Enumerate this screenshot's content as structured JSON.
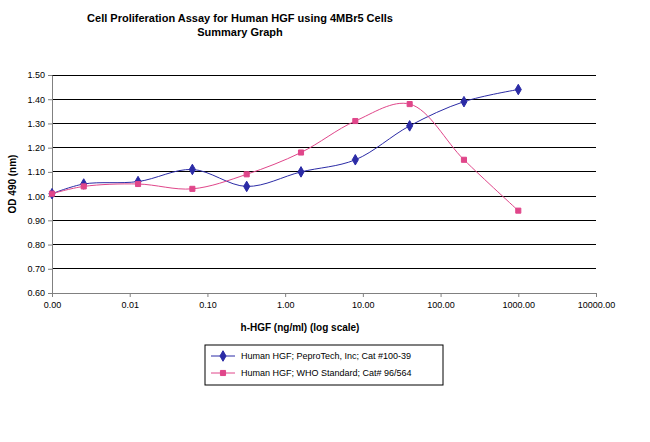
{
  "chart_data": {
    "type": "line",
    "title": "Cell Proliferation Assay for Human HGF using 4MBr5 Cells",
    "subtitle": "Summary Graph",
    "x_label": "h-HGF (ng/ml) (log scale)",
    "y_label": "OD 490 (nm)",
    "log": "x",
    "grid": "y",
    "legend": "bottom",
    "line_style": "smooth",
    "x": [
      0.001,
      0.00256,
      0.0128,
      0.064,
      0.32,
      1.6,
      8,
      40,
      200,
      1000
    ],
    "series": [
      {
        "name": "Human HGF; PeproTech, Inc; Cat #100-39",
        "color": "#2b2ba6",
        "marker": "diamond",
        "values": [
          1.01,
          1.05,
          1.06,
          1.11,
          1.04,
          1.1,
          1.15,
          1.29,
          1.39,
          1.44
        ]
      },
      {
        "name": "Human HGF; WHO Standard; Cat# 96/564",
        "color": "#e0468a",
        "marker": "square",
        "values": [
          1.01,
          1.04,
          1.05,
          1.03,
          1.09,
          1.18,
          1.31,
          1.38,
          1.15,
          0.94
        ]
      }
    ],
    "xlim": [
      0.001,
      10000
    ],
    "xticks": [
      {
        "value": 0.001,
        "label": "0.00"
      },
      {
        "value": 0.01,
        "label": "0.01"
      },
      {
        "value": 0.1,
        "label": "0.10"
      },
      {
        "value": 1,
        "label": "1.00"
      },
      {
        "value": 10,
        "label": "10.00"
      },
      {
        "value": 100,
        "label": "100.00"
      },
      {
        "value": 1000,
        "label": "1000.00"
      },
      {
        "value": 10000,
        "label": "10000.00"
      }
    ],
    "ylim": [
      0.6,
      1.5
    ],
    "yticks": [
      {
        "value": 0.6,
        "label": "0.60"
      },
      {
        "value": 0.7,
        "label": "0.70"
      },
      {
        "value": 0.8,
        "label": "0.80"
      },
      {
        "value": 0.9,
        "label": "0.90"
      },
      {
        "value": 1.0,
        "label": "1.00"
      },
      {
        "value": 1.1,
        "label": "1.10"
      },
      {
        "value": 1.2,
        "label": "1.20"
      },
      {
        "value": 1.3,
        "label": "1.30"
      },
      {
        "value": 1.4,
        "label": "1.40"
      },
      {
        "value": 1.5,
        "label": "1.50"
      }
    ]
  }
}
